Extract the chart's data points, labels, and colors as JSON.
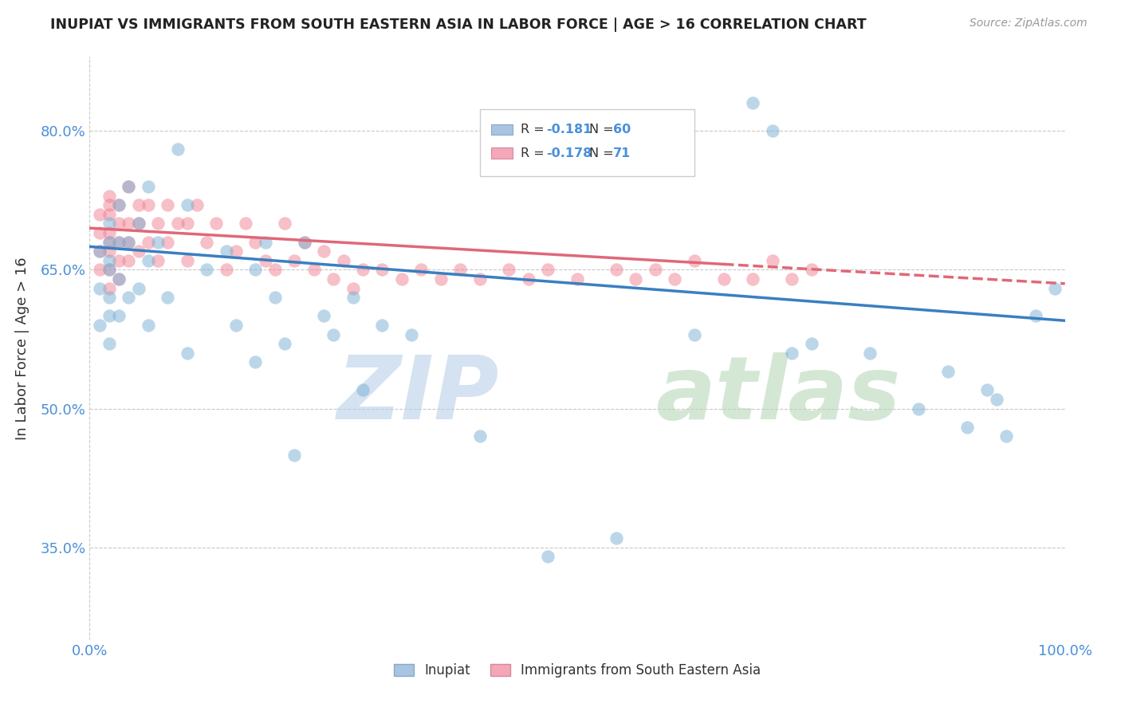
{
  "title": "INUPIAT VS IMMIGRANTS FROM SOUTH EASTERN ASIA IN LABOR FORCE | AGE > 16 CORRELATION CHART",
  "source": "Source: ZipAtlas.com",
  "ylabel": "In Labor Force | Age > 16",
  "xlim": [
    0.0,
    1.0
  ],
  "ylim": [
    0.25,
    0.88
  ],
  "yticks": [
    0.35,
    0.5,
    0.65,
    0.8
  ],
  "ytick_labels": [
    "35.0%",
    "50.0%",
    "65.0%",
    "80.0%"
  ],
  "xticks": [
    0.0,
    1.0
  ],
  "xtick_labels": [
    "0.0%",
    "100.0%"
  ],
  "inupiat_color": "#7bafd4",
  "sea_color": "#f08090",
  "background_color": "#ffffff",
  "grid_color": "#c8c8c8",
  "inupiat_x": [
    0.01,
    0.01,
    0.01,
    0.02,
    0.02,
    0.02,
    0.02,
    0.02,
    0.02,
    0.02,
    0.03,
    0.03,
    0.03,
    0.03,
    0.04,
    0.04,
    0.04,
    0.05,
    0.05,
    0.06,
    0.06,
    0.06,
    0.07,
    0.08,
    0.09,
    0.1,
    0.1,
    0.12,
    0.14,
    0.15,
    0.17,
    0.17,
    0.18,
    0.19,
    0.2,
    0.21,
    0.22,
    0.24,
    0.25,
    0.27,
    0.28,
    0.3,
    0.33,
    0.4,
    0.47,
    0.54,
    0.62,
    0.68,
    0.7,
    0.72,
    0.74,
    0.8,
    0.85,
    0.88,
    0.9,
    0.92,
    0.93,
    0.94,
    0.97,
    0.99
  ],
  "inupiat_y": [
    0.67,
    0.63,
    0.59,
    0.7,
    0.68,
    0.66,
    0.65,
    0.62,
    0.6,
    0.57,
    0.72,
    0.68,
    0.64,
    0.6,
    0.74,
    0.68,
    0.62,
    0.7,
    0.63,
    0.74,
    0.66,
    0.59,
    0.68,
    0.62,
    0.78,
    0.72,
    0.56,
    0.65,
    0.67,
    0.59,
    0.65,
    0.55,
    0.68,
    0.62,
    0.57,
    0.45,
    0.68,
    0.6,
    0.58,
    0.62,
    0.52,
    0.59,
    0.58,
    0.47,
    0.34,
    0.36,
    0.58,
    0.83,
    0.8,
    0.56,
    0.57,
    0.56,
    0.5,
    0.54,
    0.48,
    0.52,
    0.51,
    0.47,
    0.6,
    0.63
  ],
  "sea_x": [
    0.01,
    0.01,
    0.01,
    0.01,
    0.02,
    0.02,
    0.02,
    0.02,
    0.02,
    0.02,
    0.02,
    0.02,
    0.03,
    0.03,
    0.03,
    0.03,
    0.03,
    0.04,
    0.04,
    0.04,
    0.04,
    0.05,
    0.05,
    0.05,
    0.06,
    0.06,
    0.07,
    0.07,
    0.08,
    0.08,
    0.09,
    0.1,
    0.1,
    0.11,
    0.12,
    0.13,
    0.14,
    0.15,
    0.16,
    0.17,
    0.18,
    0.19,
    0.2,
    0.21,
    0.22,
    0.23,
    0.24,
    0.25,
    0.26,
    0.27,
    0.28,
    0.3,
    0.32,
    0.34,
    0.36,
    0.38,
    0.4,
    0.43,
    0.45,
    0.47,
    0.5,
    0.54,
    0.56,
    0.58,
    0.6,
    0.62,
    0.65,
    0.68,
    0.7,
    0.72,
    0.74
  ],
  "sea_y": [
    0.71,
    0.69,
    0.67,
    0.65,
    0.73,
    0.71,
    0.69,
    0.67,
    0.65,
    0.63,
    0.68,
    0.72,
    0.72,
    0.7,
    0.68,
    0.66,
    0.64,
    0.74,
    0.7,
    0.68,
    0.66,
    0.72,
    0.7,
    0.67,
    0.72,
    0.68,
    0.7,
    0.66,
    0.72,
    0.68,
    0.7,
    0.7,
    0.66,
    0.72,
    0.68,
    0.7,
    0.65,
    0.67,
    0.7,
    0.68,
    0.66,
    0.65,
    0.7,
    0.66,
    0.68,
    0.65,
    0.67,
    0.64,
    0.66,
    0.63,
    0.65,
    0.65,
    0.64,
    0.65,
    0.64,
    0.65,
    0.64,
    0.65,
    0.64,
    0.65,
    0.64,
    0.65,
    0.64,
    0.65,
    0.64,
    0.66,
    0.64,
    0.64,
    0.66,
    0.64,
    0.65
  ],
  "inupiat_trend_y0": 0.675,
  "inupiat_trend_y1": 0.595,
  "sea_trend_y0": 0.695,
  "sea_trend_y1": 0.635,
  "sea_trend_solid_end": 0.65
}
